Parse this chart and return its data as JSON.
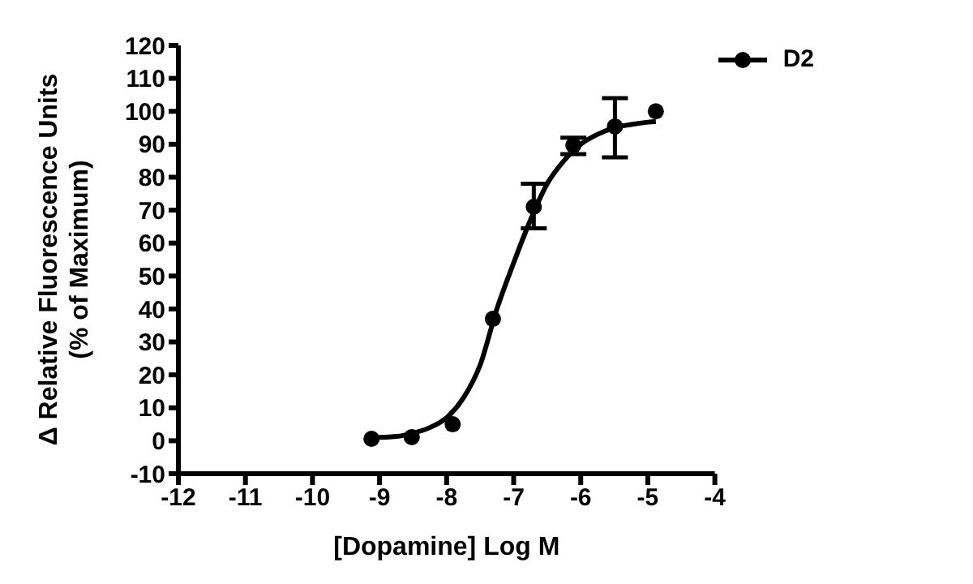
{
  "chart_data": {
    "type": "scatter",
    "xlabel": "[Dopamine] Log M",
    "ylabel": "Δ Relative Fluorescence Units\n(% of Maximum)",
    "xlim": [
      -12,
      -4
    ],
    "xticks": [
      -12,
      -11,
      -10,
      -9,
      -8,
      -7,
      -6,
      -5,
      -4
    ],
    "ylim": [
      -10,
      120
    ],
    "yticks": [
      -10,
      0,
      10,
      20,
      30,
      40,
      50,
      60,
      70,
      80,
      90,
      100,
      110,
      120
    ],
    "legend": "top right",
    "line_style": "solid",
    "series": [
      {
        "name": "D2",
        "marker": "circle",
        "color": "#000000",
        "x": [
          -9.12,
          -8.52,
          -7.91,
          -7.31,
          -6.7,
          -6.11,
          -5.49,
          -4.88
        ],
        "values": [
          0.6,
          1.1,
          5,
          37,
          71,
          89.7,
          95.4,
          100
        ],
        "errors": [
          null,
          null,
          null,
          null,
          [
            64.5,
            78
          ],
          [
            87,
            92
          ],
          [
            86,
            104
          ],
          null
        ]
      },
      {
        "type": "line",
        "marker": "none",
        "color": "#000000",
        "x": [
          -9.12,
          -8.75,
          -8.5,
          -8.25,
          -8,
          -7.75,
          -7.5,
          -7.25,
          -7,
          -6.75,
          -6.5,
          -6.25,
          -6,
          -5.75,
          -5.5,
          -5.25,
          -5,
          -4.88
        ],
        "values": [
          0.9,
          1.3,
          2.3,
          4,
          7,
          13,
          23,
          40,
          54,
          67,
          78,
          85,
          90,
          93,
          95,
          96,
          96.7,
          96.9
        ]
      }
    ]
  }
}
